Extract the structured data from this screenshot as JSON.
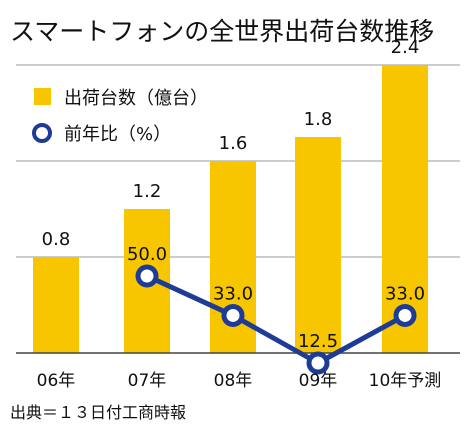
{
  "colors": {
    "bar": "#f7c600",
    "line": "#1e3b96",
    "marker_fill": "#ffffff",
    "grid": "#999999",
    "axis": "#444444",
    "text": "#111111"
  },
  "chart_data": {
    "type": "bar",
    "title": "スマートフォンの全世界出荷台数推移",
    "categories": [
      "06年",
      "07年",
      "08年",
      "09年",
      "10年予測"
    ],
    "ylim": [
      0,
      2.5
    ],
    "grid": true,
    "legend_position": "top-left",
    "series": [
      {
        "name": "出荷台数（億台）",
        "type": "bar",
        "values": [
          0.8,
          1.2,
          1.6,
          1.8,
          2.4
        ],
        "labels": [
          "0.8",
          "1.2",
          "1.6",
          "1.8",
          "2.4"
        ]
      },
      {
        "name": "前年比（%）",
        "type": "line",
        "values": [
          null,
          50.0,
          33.0,
          12.5,
          33.0
        ],
        "labels": [
          "",
          "50.0",
          "33.0",
          "12.5",
          "33.0"
        ]
      }
    ],
    "source": "出典＝１３日付工商時報"
  }
}
